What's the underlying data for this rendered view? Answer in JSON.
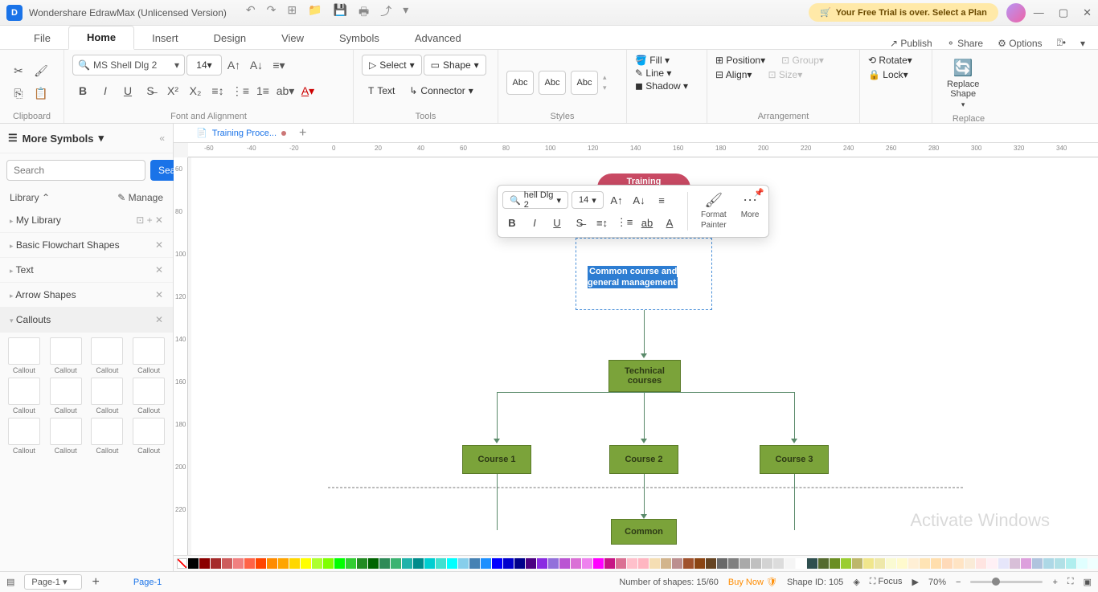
{
  "title": "Wondershare EdrawMax (Unlicensed Version)",
  "trial_banner": "Your Free Trial is over. Select a Plan",
  "menu_tabs": [
    "File",
    "Home",
    "Insert",
    "Design",
    "View",
    "Symbols",
    "Advanced"
  ],
  "menu_right": {
    "publish": "Publish",
    "share": "Share",
    "options": "Options"
  },
  "ribbon": {
    "clipboard": "Clipboard",
    "font_name": "MS Shell Dlg 2",
    "font_size": "14",
    "font_group": "Font and Alignment",
    "select": "Select",
    "shape": "Shape",
    "text": "Text",
    "connector": "Connector",
    "tools": "Tools",
    "styles": "Styles",
    "fill": "Fill",
    "line": "Line",
    "shadow": "Shadow",
    "position": "Position",
    "align": "Align",
    "group": "Group",
    "size": "Size",
    "rotate": "Rotate",
    "lock": "Lock",
    "arrangement": "Arrangement",
    "replace_shape": "Replace\nShape",
    "replace": "Replace"
  },
  "sidebar": {
    "title": "More Symbols",
    "search_ph": "Search",
    "search_btn": "Search",
    "library": "Library",
    "manage": "Manage",
    "sections": [
      "My Library",
      "Basic Flowchart Shapes",
      "Text",
      "Arrow Shapes",
      "Callouts"
    ],
    "thumb_label": "Callout"
  },
  "doc_tab": "Training Proce...",
  "ruler_h": [
    -60,
    -40,
    -20,
    0,
    20,
    40,
    60,
    80,
    100,
    120,
    140,
    160,
    180,
    200,
    220,
    240,
    260,
    280,
    300,
    320,
    340
  ],
  "ruler_v": [
    60,
    80,
    100,
    120,
    140,
    160,
    180,
    200,
    220
  ],
  "float": {
    "font": "hell Dlg 2",
    "size": "14",
    "format": "Format",
    "painter": "Painter",
    "more": "More"
  },
  "flowchart": {
    "training": "Training",
    "editing_text": "Common course and general management",
    "technical": "Technical courses",
    "c1": "Course 1",
    "c2": "Course 2",
    "c3": "Course 3",
    "common": "Common",
    "colors": {
      "green": "#7ba33a",
      "green_border": "#5a7a28",
      "red": "#c94a64",
      "sel": "#2d7dd2",
      "conn": "#5a8a6a"
    }
  },
  "colorbar": [
    "#000000",
    "#8b0000",
    "#a52a2a",
    "#cd5c5c",
    "#f08080",
    "#ff6347",
    "#ff4500",
    "#ff8c00",
    "#ffa500",
    "#ffd700",
    "#ffff00",
    "#adff2f",
    "#7fff00",
    "#00ff00",
    "#32cd32",
    "#228b22",
    "#006400",
    "#2e8b57",
    "#3cb371",
    "#20b2aa",
    "#008b8b",
    "#00ced1",
    "#40e0d0",
    "#00ffff",
    "#87ceeb",
    "#4682b4",
    "#1e90ff",
    "#0000ff",
    "#0000cd",
    "#00008b",
    "#4b0082",
    "#8a2be2",
    "#9370db",
    "#ba55d3",
    "#da70d6",
    "#ee82ee",
    "#ff00ff",
    "#c71585",
    "#db7093",
    "#ffc0cb",
    "#ffb6c1",
    "#f5deb3",
    "#d2b48c",
    "#bc8f8f",
    "#a0522d",
    "#8b4513",
    "#654321",
    "#696969",
    "#808080",
    "#a9a9a9",
    "#c0c0c0",
    "#d3d3d3",
    "#dcdcdc",
    "#f5f5f5",
    "#ffffff",
    "#2f4f4f",
    "#556b2f",
    "#6b8e23",
    "#9acd32",
    "#bdb76b",
    "#f0e68c",
    "#eee8aa",
    "#fafad2",
    "#fffacd",
    "#ffefd5",
    "#ffe4b5",
    "#ffdead",
    "#ffdab9",
    "#ffe4c4",
    "#faebd7",
    "#ffe4e1",
    "#fff0f5",
    "#e6e6fa",
    "#d8bfd8",
    "#dda0dd",
    "#b0c4de",
    "#add8e6",
    "#b0e0e6",
    "#afeeee",
    "#e0ffff",
    "#f0ffff",
    "#f0fff0",
    "#f5fffa",
    "#fffff0"
  ],
  "status": {
    "page": "Page-1",
    "page_tab": "Page-1",
    "shapes": "Number of shapes: 15/60",
    "buy": "Buy Now",
    "shape_id": "Shape ID: 105",
    "focus": "Focus",
    "zoom": "70%"
  },
  "watermark": "Activate Windows"
}
